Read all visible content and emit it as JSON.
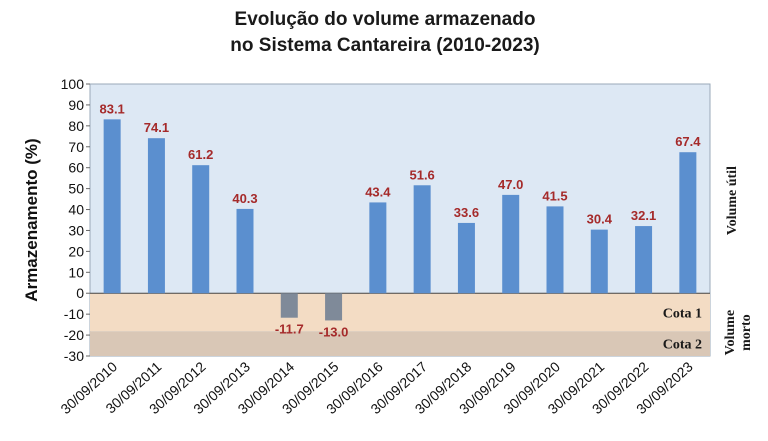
{
  "chart_data": {
    "type": "bar",
    "title_lines": [
      "Evolução do volume armazenado",
      "no Sistema Cantareira (2010-2023)"
    ],
    "ylabel": "Armazenamento (%)",
    "ylim": [
      -30,
      100
    ],
    "yticks": [
      100,
      90,
      80,
      70,
      60,
      50,
      40,
      30,
      20,
      10,
      0,
      -10,
      -20,
      -30
    ],
    "categories": [
      "30/09/2010",
      "30/09/2011",
      "30/09/2012",
      "30/09/2013",
      "30/09/2014",
      "30/09/2015",
      "30/09/2016",
      "30/09/2017",
      "30/09/2018",
      "30/09/2019",
      "30/09/2020",
      "30/09/2021",
      "30/09/2022",
      "30/09/2023"
    ],
    "values": [
      83.1,
      74.1,
      61.2,
      40.3,
      -11.7,
      -13.0,
      43.4,
      51.6,
      33.6,
      47.0,
      41.5,
      30.4,
      32.1,
      67.4
    ],
    "value_labels": [
      "83.1",
      "74.1",
      "61.2",
      "40.3",
      "-11.7",
      "-13.0",
      "43.4",
      "51.6",
      "33.6",
      "47.0",
      "41.5",
      "30.4",
      "32.1",
      "67.4"
    ],
    "bands": [
      {
        "label": "Cota 1",
        "from": 0,
        "to": -18.2,
        "color": "#f3dcc4"
      },
      {
        "label": "Cota 2",
        "from": -18.2,
        "to": -30,
        "color": "#d9c7b6"
      }
    ],
    "side_labels": {
      "upper": "Volume útil",
      "lower_line1": "Volume",
      "lower_line2": "morto"
    },
    "colors": {
      "positive_bar": "#5b8fcf",
      "negative_bar": "#7f8a99",
      "plot_background": "#dde8f4",
      "value_label": "#a52a2a"
    }
  }
}
